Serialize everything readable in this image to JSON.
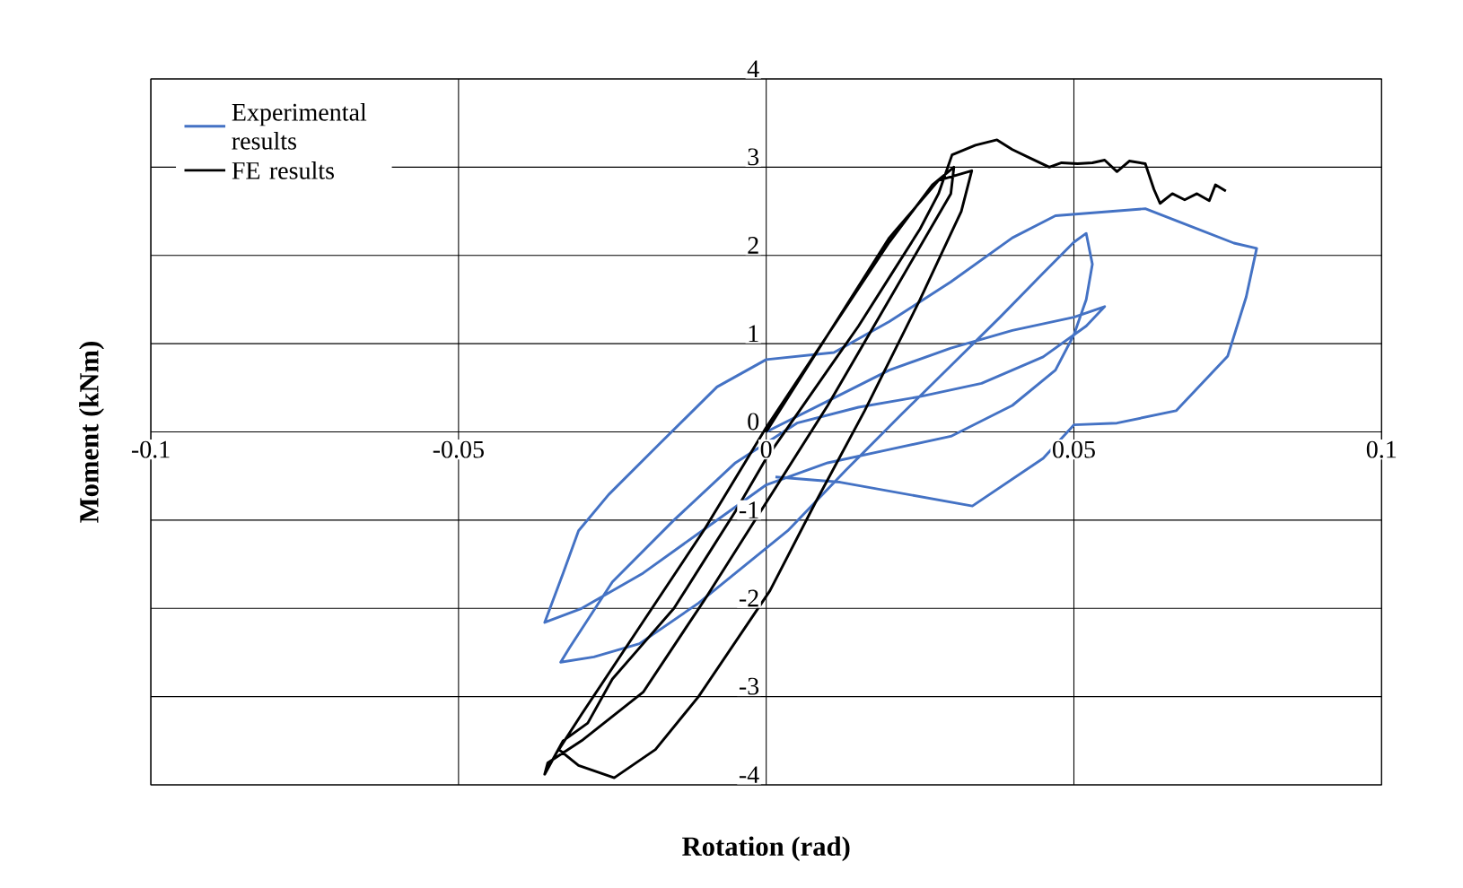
{
  "chart_data": {
    "type": "line",
    "xlabel": "Rotation (rad)",
    "ylabel": "Moment (kNm)",
    "xlim": [
      -0.1,
      0.1
    ],
    "ylim": [
      -4,
      4
    ],
    "xticks": [
      -0.1,
      -0.05,
      0,
      0.05,
      0.1
    ],
    "yticks": [
      -4,
      -3,
      -2,
      -1,
      0,
      1,
      2,
      3,
      4
    ],
    "grid": true,
    "legend": "top left",
    "marker": "none",
    "line_style": "solid",
    "series": [
      {
        "name": "Experimental results",
        "color": "#4472c4",
        "x": [
          0,
          0.01,
          0.02,
          0.03,
          0.04,
          0.05,
          0.055,
          0.052,
          0.045,
          0.035,
          0.025,
          0.015,
          0.005,
          -0.005,
          -0.015,
          -0.025,
          -0.032,
          -0.0334,
          -0.028,
          -0.0206,
          -0.011,
          0.0035,
          0.013,
          0.022,
          0.03,
          0.038,
          0.045,
          0.05,
          0.052,
          0.053,
          0.052,
          0.05,
          0.047,
          0.04,
          0.03,
          0.02,
          0.01,
          0.0,
          -0.01,
          -0.02,
          -0.03,
          -0.036,
          -0.033,
          -0.0305,
          -0.0256,
          -0.0177,
          -0.008,
          0,
          0.011,
          0.02,
          0.03,
          0.04,
          0.047,
          0.0616,
          0.076,
          0.0797,
          0.078,
          0.075,
          0.0666,
          0.057,
          0.05,
          0.045,
          0.0335,
          0.012,
          0.0015
        ],
        "values": [
          0,
          0.35,
          0.7,
          0.95,
          1.15,
          1.3,
          1.42,
          1.2,
          0.85,
          0.55,
          0.4,
          0.28,
          0.1,
          -0.35,
          -1.0,
          -1.7,
          -2.45,
          -2.61,
          -2.55,
          -2.4,
          -1.94,
          -1.12,
          -0.43,
          0.2,
          0.75,
          1.3,
          1.8,
          2.15,
          2.25,
          1.9,
          1.5,
          1.1,
          0.7,
          0.3,
          -0.05,
          -0.2,
          -0.35,
          -0.6,
          -1.1,
          -1.6,
          -2.0,
          -2.16,
          -1.6,
          -1.12,
          -0.71,
          -0.16,
          0.51,
          0.82,
          0.9,
          1.25,
          1.7,
          2.2,
          2.45,
          2.53,
          2.14,
          2.08,
          1.53,
          0.86,
          0.24,
          0.1,
          0.08,
          -0.3,
          -0.84,
          -0.57,
          -0.51
        ]
      },
      {
        "name": "FE results",
        "color": "#000000",
        "x": [
          0,
          0.01,
          0.02,
          0.028,
          0.0334,
          0.0317,
          0.025,
          0.016,
          0.008,
          0.0006,
          -0.011,
          -0.018,
          -0.0247,
          -0.0305,
          -0.0337,
          -0.03,
          -0.02,
          -0.01,
          0,
          0.01,
          0.02,
          0.027,
          0.0305,
          0.03,
          0.02,
          0.01,
          0,
          -0.01,
          -0.02,
          -0.03,
          -0.0355,
          -0.036,
          -0.033,
          -0.029,
          -0.025,
          -0.02,
          -0.015,
          -0.01,
          -0.005,
          0,
          0.005,
          0.01,
          0.015,
          0.02,
          0.025,
          0.028,
          0.0302,
          0.034,
          0.0375,
          0.04,
          0.043,
          0.046,
          0.048,
          0.0506,
          0.053,
          0.055,
          0.057,
          0.059,
          0.0616,
          0.063,
          0.064,
          0.066,
          0.068,
          0.07,
          0.072,
          0.073,
          0.0747
        ],
        "values": [
          0,
          1.1,
          2.2,
          2.85,
          2.96,
          2.5,
          1.5,
          0.24,
          -0.8,
          -1.8,
          -3.0,
          -3.6,
          -3.92,
          -3.78,
          -3.6,
          -3.2,
          -2.15,
          -1.1,
          0.05,
          1.1,
          2.15,
          2.8,
          3.0,
          2.7,
          1.5,
          0.3,
          -0.8,
          -1.9,
          -2.95,
          -3.5,
          -3.75,
          -3.88,
          -3.5,
          -3.3,
          -2.8,
          -2.4,
          -2.0,
          -1.45,
          -0.9,
          -0.3,
          0.2,
          0.7,
          1.2,
          1.75,
          2.3,
          2.7,
          3.14,
          3.25,
          3.31,
          3.2,
          3.1,
          3.0,
          3.05,
          3.04,
          3.05,
          3.08,
          2.95,
          3.07,
          3.04,
          2.75,
          2.59,
          2.7,
          2.63,
          2.7,
          2.62,
          2.8,
          2.73
        ]
      }
    ]
  }
}
